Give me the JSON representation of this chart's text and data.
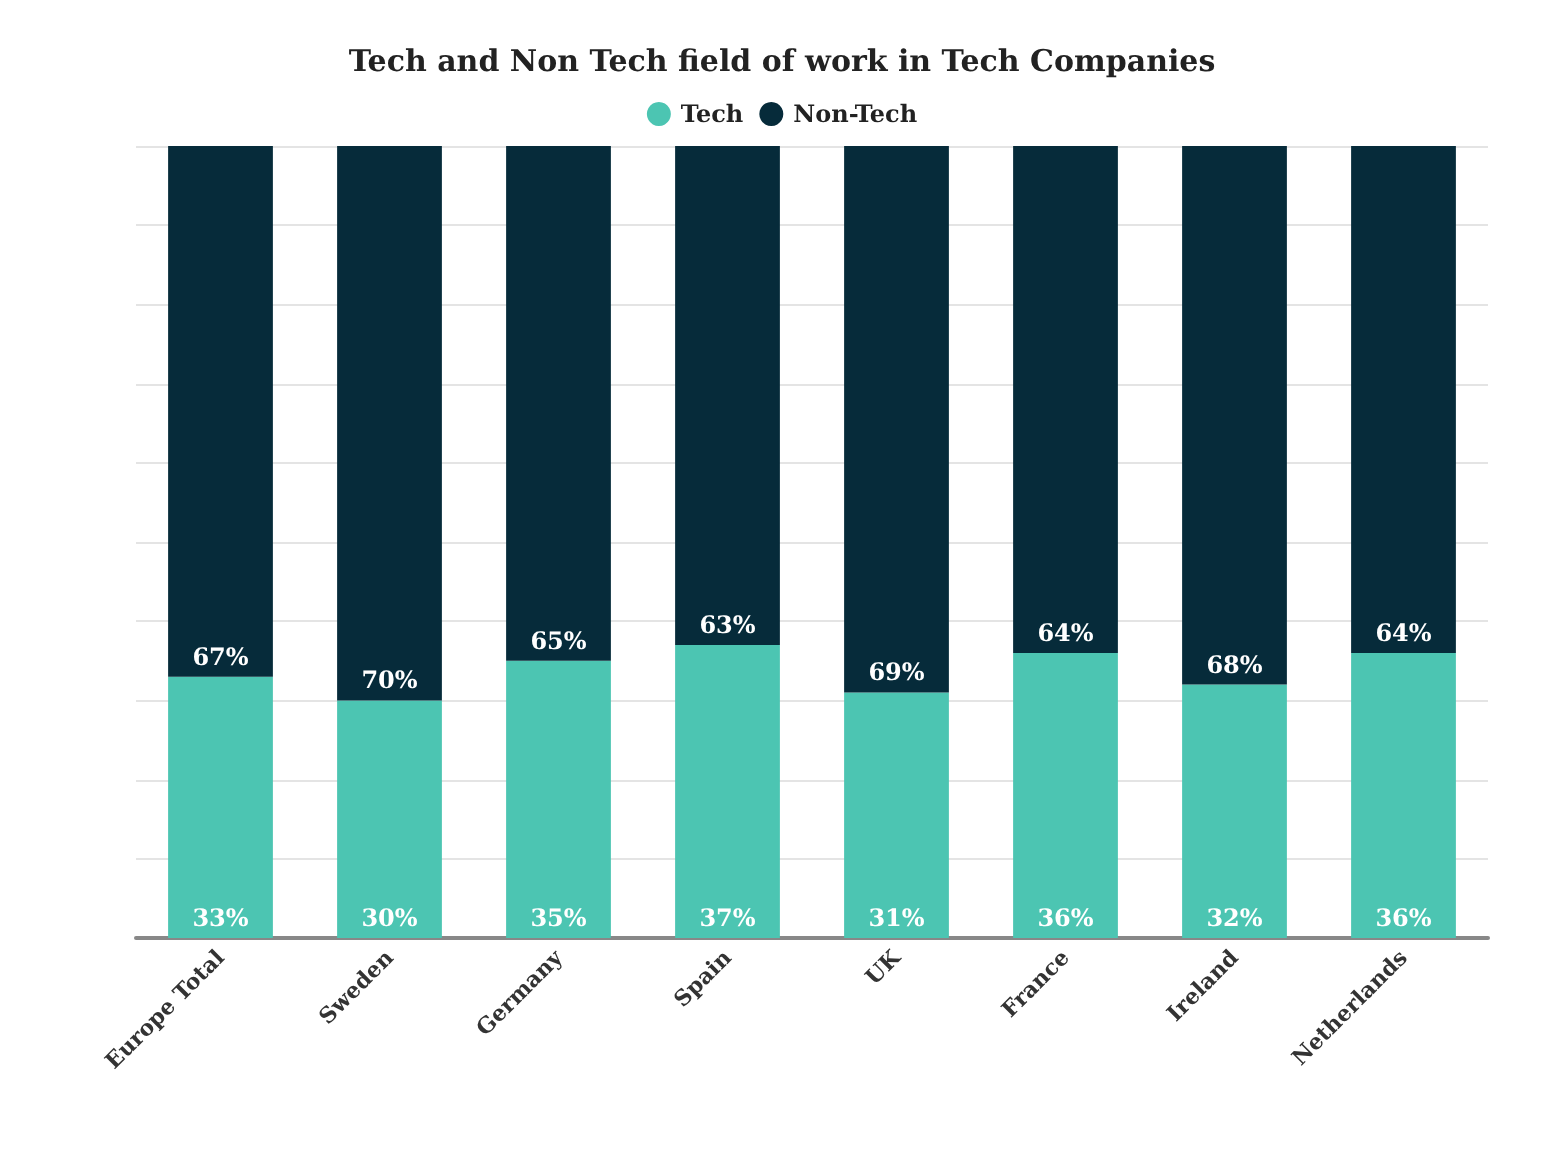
{
  "chart_data": {
    "type": "bar",
    "title": "Tech and Non Tech field of work in Tech Companies",
    "stacked": true,
    "legend": "top",
    "grid": "y",
    "categories": [
      "Europe Total",
      "Sweden",
      "Germany",
      "Spain",
      "UK",
      "France",
      "Ireland",
      "Netherlands"
    ],
    "ylim": [
      0,
      100
    ],
    "yticks": [
      {
        "value": 0,
        "label": null
      },
      {
        "value": 10,
        "label": null
      },
      {
        "value": 20,
        "label": null
      },
      {
        "value": 30,
        "label": null
      },
      {
        "value": 40,
        "label": null
      },
      {
        "value": 50,
        "label": null
      },
      {
        "value": 60,
        "label": null
      },
      {
        "value": 70,
        "label": null
      },
      {
        "value": 80,
        "label": null
      },
      {
        "value": 90,
        "label": null
      },
      {
        "value": 100,
        "label": null
      }
    ],
    "series": [
      {
        "name": "Tech",
        "color": "#4cc5b2",
        "values": [
          33,
          30,
          35,
          37,
          31,
          36,
          32,
          36
        ],
        "value_labels": [
          "33%",
          "30%",
          "35%",
          "37%",
          "31%",
          "36%",
          "32%",
          "36%"
        ]
      },
      {
        "name": "Non-Tech",
        "color": "#062b3a",
        "values": [
          67,
          70,
          65,
          63,
          69,
          64,
          68,
          64
        ],
        "value_labels": [
          "67%",
          "70%",
          "65%",
          "63%",
          "69%",
          "64%",
          "68%",
          "64%"
        ]
      }
    ]
  }
}
